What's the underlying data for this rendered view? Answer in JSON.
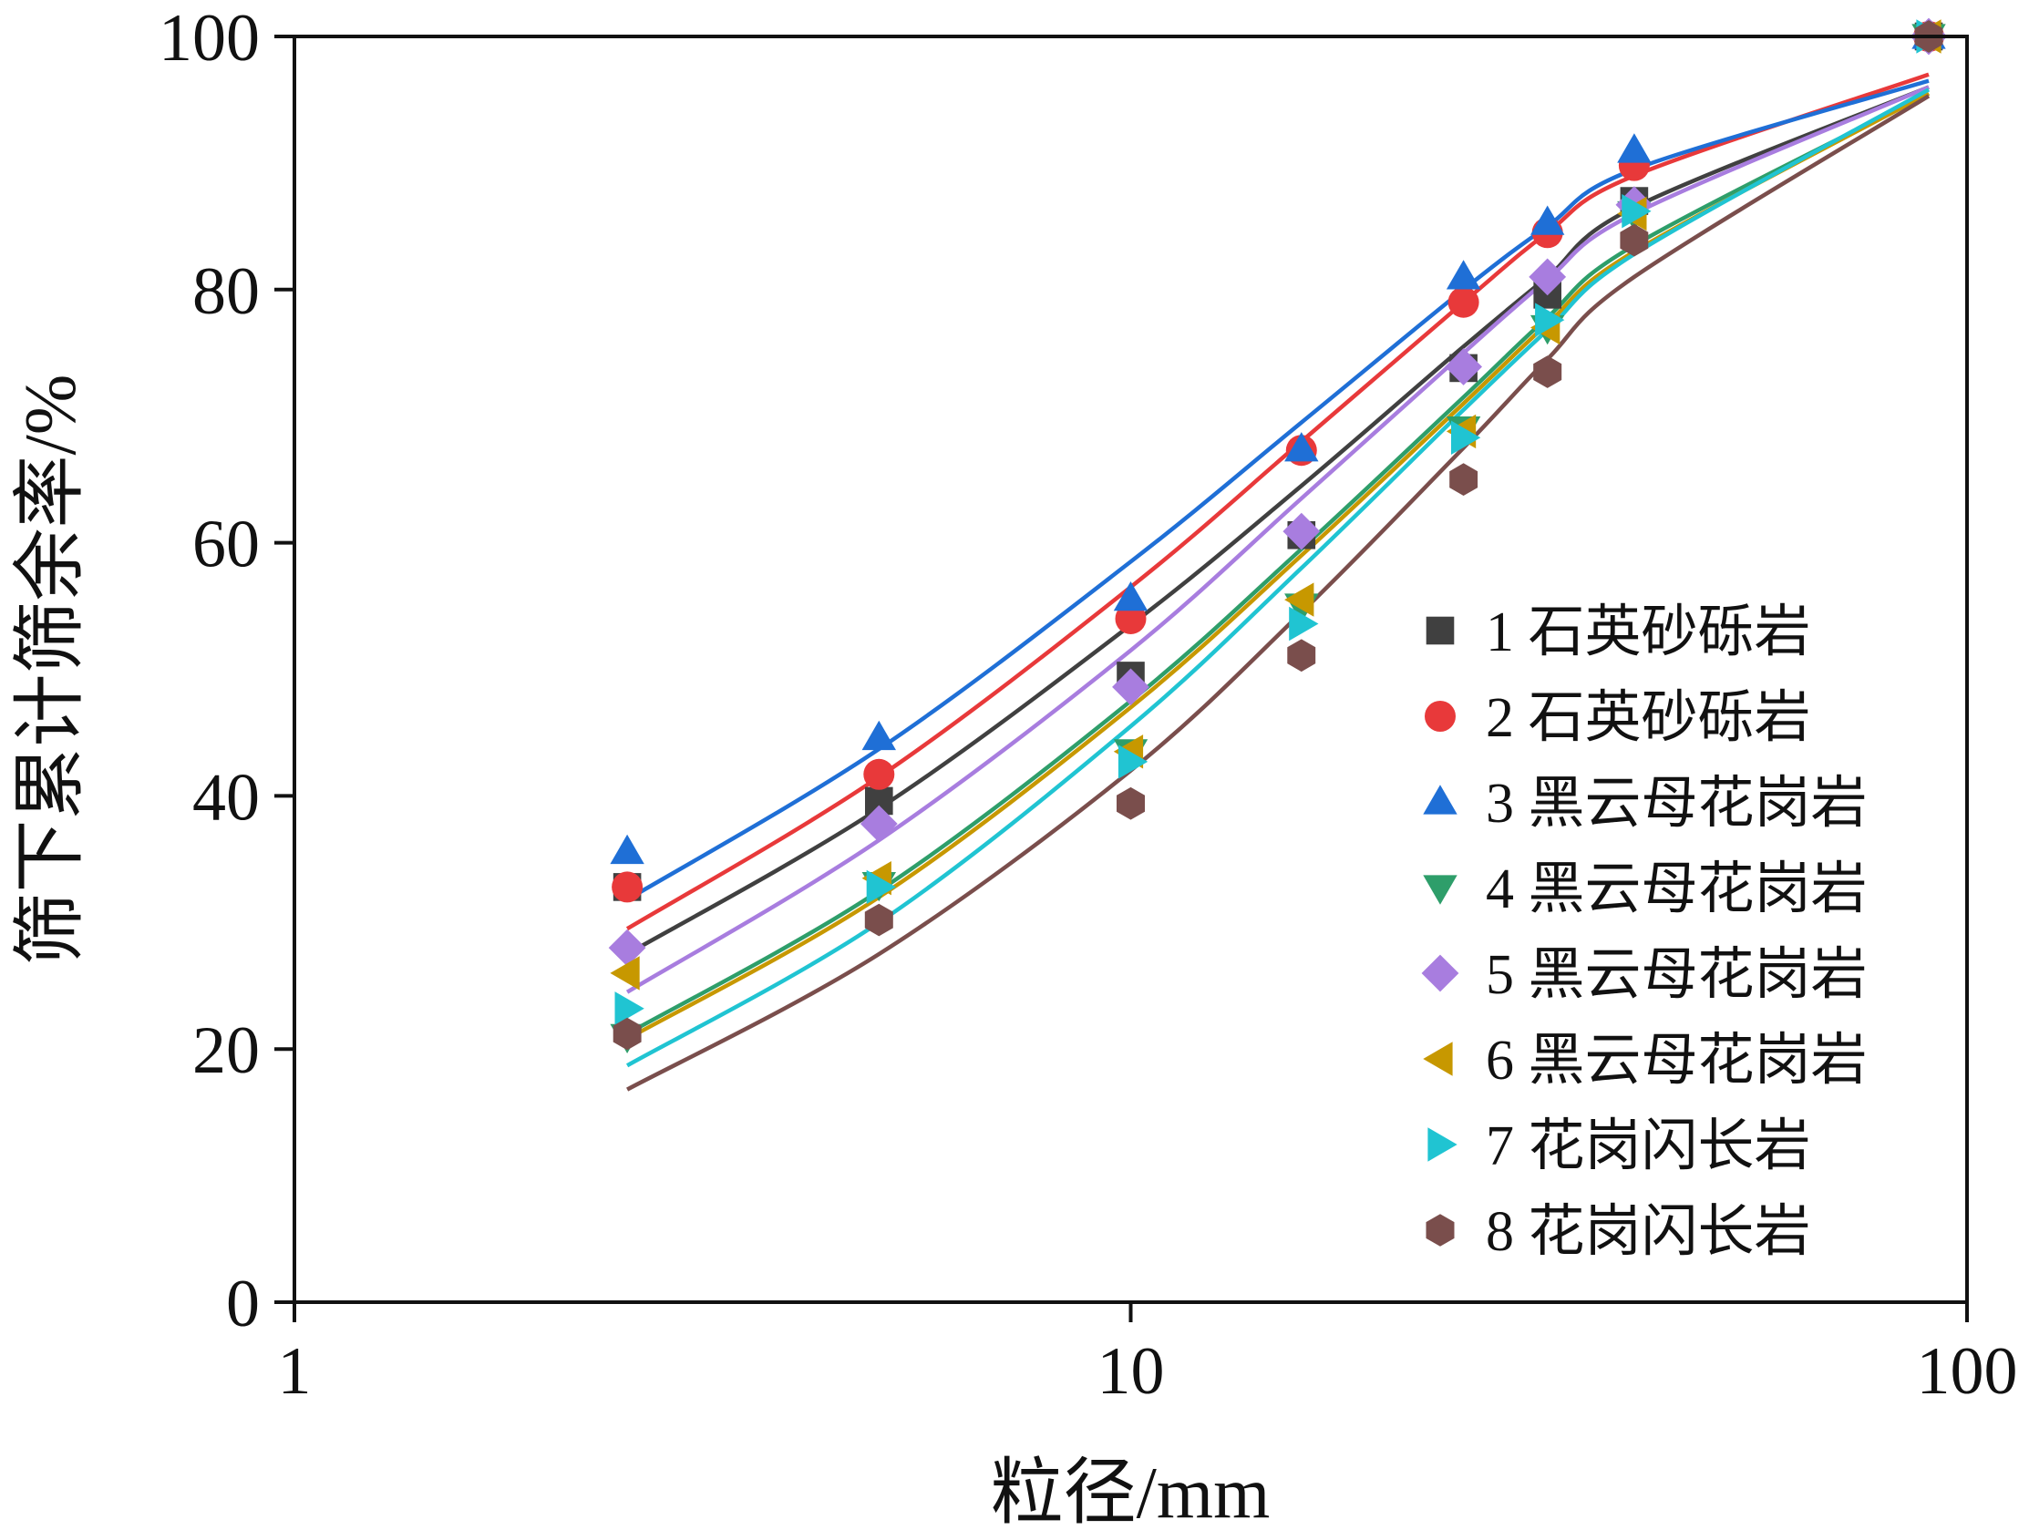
{
  "chart_data": {
    "type": "scatter",
    "title": "",
    "xlabel": "粒径/mm",
    "ylabel": "筛下累计筛余率/%",
    "xscale": "log",
    "xlim": [
      1,
      100
    ],
    "ylim": [
      0,
      100
    ],
    "x_ticks": [
      "1",
      "10",
      "100"
    ],
    "y_ticks": [
      "0",
      "20",
      "40",
      "60",
      "80",
      "100"
    ],
    "grid": false,
    "legend_position": "lower-right",
    "fit_curves": true,
    "x": [
      2.5,
      5,
      10,
      16,
      25,
      31.5,
      40,
      90
    ],
    "series": [
      {
        "name": "1 石英砂砾岩",
        "marker": "square",
        "color": "#404040",
        "values": [
          32.8,
          39.6,
          49.5,
          60.6,
          73.8,
          79.6,
          87.0,
          100
        ],
        "fit": [
          27.5,
          39.0,
          53.5,
          64.5,
          75.5,
          81.0,
          86.5,
          96.0
        ]
      },
      {
        "name": "2 石英砂砾岩",
        "marker": "circle",
        "color": "#e8393a",
        "values": [
          32.8,
          41.7,
          54.0,
          67.3,
          79.0,
          84.5,
          89.8,
          100
        ],
        "fit": [
          29.5,
          41.5,
          56.5,
          68.0,
          79.0,
          84.5,
          89.0,
          97.0
        ]
      },
      {
        "name": "3 黑云母花岗岩",
        "marker": "triangle-up",
        "color": "#1f6fd6",
        "values": [
          35.6,
          44.6,
          55.6,
          67.4,
          81.0,
          85.3,
          91.0,
          100
        ],
        "fit": [
          31.8,
          43.7,
          58.5,
          69.5,
          80.0,
          85.0,
          89.5,
          96.5
        ]
      },
      {
        "name": "4 黑云母花岗岩",
        "marker": "triangle-down",
        "color": "#2e9e6a",
        "values": [
          21.0,
          33.0,
          43.5,
          55.0,
          69.0,
          77.0,
          86.0,
          100
        ],
        "fit": [
          21.2,
          32.5,
          47.5,
          59.5,
          71.5,
          77.8,
          83.5,
          95.5
        ]
      },
      {
        "name": "5 黑云母花岗岩",
        "marker": "diamond",
        "color": "#a87ddf",
        "values": [
          28.0,
          37.8,
          48.6,
          60.9,
          73.9,
          81.0,
          86.7,
          100
        ],
        "fit": [
          24.5,
          36.5,
          51.5,
          63.5,
          75.0,
          80.8,
          86.0,
          96.0
        ]
      },
      {
        "name": "6 黑云母花岗岩",
        "marker": "triangle-left",
        "color": "#c79800",
        "values": [
          26.0,
          33.5,
          43.5,
          55.5,
          68.8,
          77.0,
          86.0,
          100
        ],
        "fit": [
          20.8,
          32.0,
          47.0,
          59.0,
          71.0,
          77.3,
          83.0,
          95.5
        ]
      },
      {
        "name": "7 花岗闪长岩",
        "marker": "triangle-right",
        "color": "#20c4d2",
        "values": [
          23.2,
          32.8,
          42.7,
          53.6,
          68.3,
          77.6,
          86.2,
          100
        ],
        "fit": [
          18.7,
          30.0,
          45.5,
          58.0,
          70.5,
          76.8,
          82.8,
          95.8
        ]
      },
      {
        "name": "8 花岗闪长岩",
        "marker": "hexagon",
        "color": "#7a4e4c",
        "values": [
          21.2,
          30.2,
          39.4,
          51.1,
          65.0,
          73.5,
          83.9,
          100
        ],
        "fit": [
          16.8,
          27.5,
          42.0,
          54.5,
          67.5,
          74.5,
          81.0,
          95.3
        ]
      }
    ]
  }
}
